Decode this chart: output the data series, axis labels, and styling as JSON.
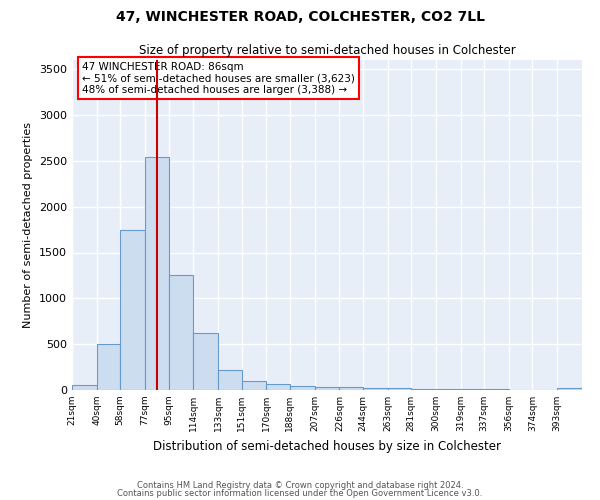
{
  "title1": "47, WINCHESTER ROAD, COLCHESTER, CO2 7LL",
  "title2": "Size of property relative to semi-detached houses in Colchester",
  "xlabel": "Distribution of semi-detached houses by size in Colchester",
  "ylabel": "Number of semi-detached properties",
  "bin_labels": [
    "21sqm",
    "40sqm",
    "58sqm",
    "77sqm",
    "95sqm",
    "114sqm",
    "133sqm",
    "151sqm",
    "170sqm",
    "188sqm",
    "207sqm",
    "226sqm",
    "244sqm",
    "263sqm",
    "281sqm",
    "300sqm",
    "319sqm",
    "337sqm",
    "356sqm",
    "374sqm",
    "393sqm"
  ],
  "bin_edges": [
    21,
    40,
    58,
    77,
    95,
    114,
    133,
    151,
    170,
    188,
    207,
    226,
    244,
    263,
    281,
    300,
    319,
    337,
    356,
    374,
    393,
    412
  ],
  "bar_heights": [
    60,
    500,
    1750,
    2540,
    1260,
    620,
    220,
    100,
    65,
    45,
    35,
    30,
    25,
    20,
    15,
    10,
    8,
    6,
    5,
    5,
    25
  ],
  "bar_color": "#ccddf0",
  "bar_edge_color": "#6699cc",
  "bar_edge_width": 0.8,
  "red_line_x": 86,
  "red_line_color": "#cc0000",
  "ylim": [
    0,
    3600
  ],
  "yticks": [
    0,
    500,
    1000,
    1500,
    2000,
    2500,
    3000,
    3500
  ],
  "annotation_text": "47 WINCHESTER ROAD: 86sqm\n← 51% of semi-detached houses are smaller (3,623)\n48% of semi-detached houses are larger (3,388) →",
  "bg_color": "#e8eef8",
  "grid_color": "white",
  "footer1": "Contains HM Land Registry data © Crown copyright and database right 2024.",
  "footer2": "Contains public sector information licensed under the Open Government Licence v3.0."
}
